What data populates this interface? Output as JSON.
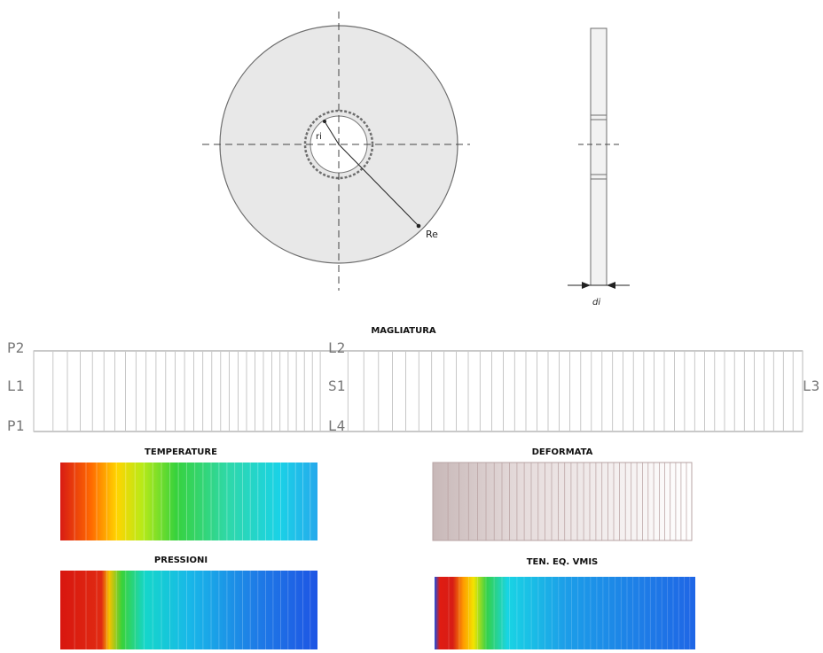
{
  "drawing": {
    "ri_label": "ri",
    "re_label": "Re",
    "thickness_label": "di"
  },
  "mesh": {
    "title": "MAGLIATURA",
    "labels": {
      "p2": "P2",
      "l1": "L1",
      "p1": "P1",
      "l2": "L2",
      "s1": "S1",
      "l4": "L4",
      "l3": "L3"
    }
  },
  "panels": {
    "temperature": {
      "title": "TEMPERATURE"
    },
    "deformed": {
      "title": "DEFORMATA"
    },
    "pressure": {
      "title": "PRESSIONI"
    },
    "stress": {
      "title": "TEN. EQ. VMIS"
    }
  },
  "colors": {
    "red": "#d81b14",
    "orange": "#ff8a00",
    "yellow": "#fff000",
    "green": "#3fd13c",
    "cyan": "#19d8e8",
    "blue": "#1f63e6",
    "outline": "#6d6d6d",
    "disk_fill": "#e8e8e8",
    "mesh_line": "#b9b9b9"
  }
}
